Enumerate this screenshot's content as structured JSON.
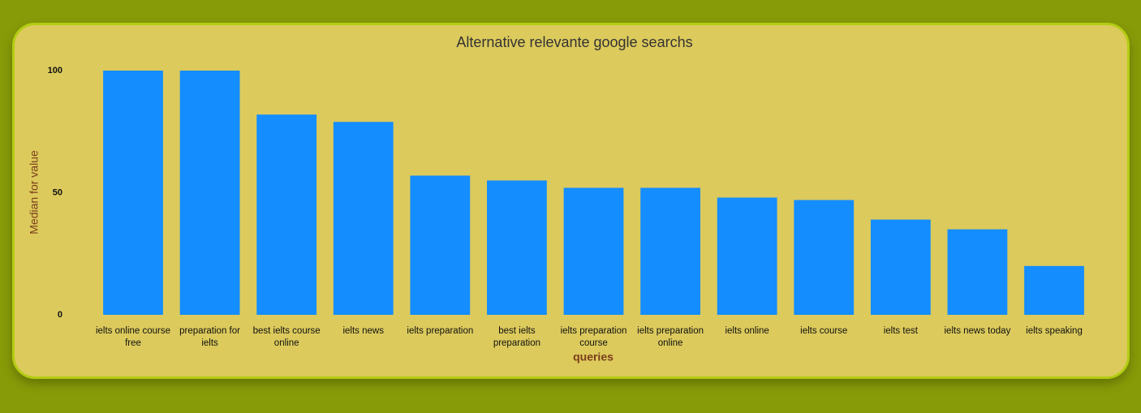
{
  "chart_data": {
    "type": "bar",
    "title": "Alternative relevante google searchs",
    "x_label": "queries",
    "y_label": "Median for value",
    "categories": [
      "ielts online course free",
      "preparation for ielts",
      "best ielts course online",
      "ielts news",
      "ielts preparation",
      "best ielts preparation",
      "ielts preparation course",
      "ielts preparation online",
      "ielts online",
      "ielts course",
      "ielts test",
      "ielts news today",
      "ielts speaking"
    ],
    "values": [
      100,
      100,
      82,
      79,
      57,
      55,
      52,
      52,
      48,
      47,
      39,
      35,
      20
    ],
    "color": "#148dff",
    "ylim": [
      0,
      100
    ],
    "yticks": [
      0,
      50,
      100
    ],
    "grid": false
  }
}
